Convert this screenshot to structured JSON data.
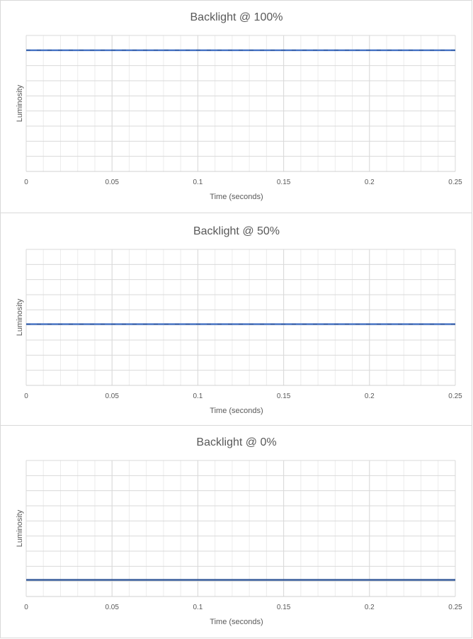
{
  "chart_data": [
    {
      "type": "line",
      "title": "Backlight @ 100%",
      "xlabel": "Time (seconds)",
      "ylabel": "Luminosity",
      "xlim": [
        0,
        0.25
      ],
      "ylim": [
        0,
        9
      ],
      "x_ticks": [
        "0",
        "0.05",
        "0.1",
        "0.15",
        "0.2",
        "0.25"
      ],
      "grid": true,
      "series": [
        {
          "color": "#4472c4",
          "x": [
            0,
            0.25
          ],
          "values": [
            8.02,
            8.02
          ]
        }
      ]
    },
    {
      "type": "line",
      "title": "Backlight @ 50%",
      "xlabel": "Time (seconds)",
      "ylabel": "Luminosity",
      "xlim": [
        0,
        0.25
      ],
      "ylim": [
        0,
        9
      ],
      "x_ticks": [
        "0",
        "0.05",
        "0.1",
        "0.15",
        "0.2",
        "0.25"
      ],
      "grid": true,
      "series": [
        {
          "color": "#4472c4",
          "x": [
            0,
            0.25
          ],
          "values": [
            4.05,
            4.05
          ]
        }
      ]
    },
    {
      "type": "line",
      "title": "Backlight @ 0%",
      "xlabel": "Time (seconds)",
      "ylabel": "Luminosity",
      "xlim": [
        0,
        0.25
      ],
      "ylim": [
        0,
        9
      ],
      "x_ticks": [
        "0",
        "0.05",
        "0.1",
        "0.15",
        "0.2",
        "0.25"
      ],
      "grid": true,
      "series": [
        {
          "color": "#2f5597",
          "x": [
            0,
            0.25
          ],
          "values": [
            1.1,
            1.1
          ]
        }
      ]
    }
  ]
}
